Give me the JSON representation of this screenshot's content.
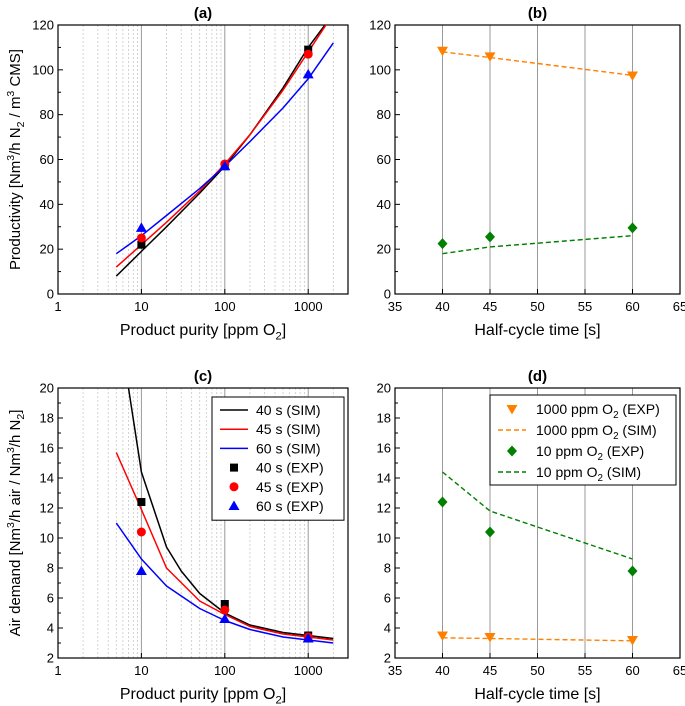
{
  "chart_data": [
    {
      "panel": "(a)",
      "type": "line",
      "xscale": "log",
      "xlabel": "Product purity [ppm O2]",
      "xlabel_parts": {
        "main": "Product purity [ppm O",
        "sub": "2",
        "tail": "]"
      },
      "ylabel": "Productivity [Nm3/h N2 / m3 CMS]",
      "ylabel_parts": {
        "a": "Productivity [Nm",
        "sup1": "3",
        "b": "/h N",
        "sub1": "2",
        "c": " / m",
        "sup2": "3",
        "d": " CMS]"
      },
      "xlim": [
        1,
        3000
      ],
      "ylim": [
        0,
        120
      ],
      "xticks": [
        1,
        10,
        100,
        1000
      ],
      "xtick_labels": [
        "1",
        "10",
        "100",
        "1000"
      ],
      "yticks": [
        0,
        20,
        40,
        60,
        80,
        100,
        120
      ],
      "ytick_labels": [
        "0",
        "20",
        "40",
        "60",
        "80",
        "100",
        "120"
      ],
      "series": [
        {
          "name": "40 s (SIM)",
          "kind": "line",
          "color": "#000000",
          "x": [
            5,
            10,
            20,
            50,
            100,
            200,
            500,
            1000,
            2000
          ],
          "y": [
            8,
            19,
            30,
            45,
            57,
            71,
            92,
            110,
            125
          ]
        },
        {
          "name": "45 s (SIM)",
          "kind": "line",
          "color": "#ff0000",
          "x": [
            5,
            10,
            20,
            50,
            100,
            200,
            500,
            1000,
            2000
          ],
          "y": [
            12,
            22,
            32,
            46,
            58,
            71,
            91,
            108,
            125
          ]
        },
        {
          "name": "60 s (SIM)",
          "kind": "line",
          "color": "#0000ff",
          "x": [
            5,
            10,
            20,
            50,
            100,
            200,
            500,
            1000,
            2000
          ],
          "y": [
            18,
            26,
            35,
            47,
            57,
            68,
            83,
            96,
            112
          ]
        },
        {
          "name": "40 s (EXP)",
          "kind": "marker",
          "marker": "square",
          "color": "#000000",
          "x": [
            10,
            100,
            1000
          ],
          "y": [
            22,
            57,
            109
          ]
        },
        {
          "name": "45 s (EXP)",
          "kind": "marker",
          "marker": "circle",
          "color": "#ff0000",
          "x": [
            10,
            100,
            1000
          ],
          "y": [
            25,
            58,
            107
          ]
        },
        {
          "name": "60 s (EXP)",
          "kind": "marker",
          "marker": "triangle-up",
          "color": "#0000ff",
          "x": [
            10,
            100,
            1000
          ],
          "y": [
            29.5,
            57,
            98
          ]
        }
      ]
    },
    {
      "panel": "(b)",
      "type": "line",
      "xscale": "linear",
      "xlabel": "Half-cycle time [s]",
      "xlim": [
        35,
        65
      ],
      "ylim": [
        0,
        120
      ],
      "xticks": [
        35,
        40,
        45,
        50,
        55,
        60,
        65
      ],
      "xtick_labels": [
        "35",
        "40",
        "45",
        "50",
        "55",
        "60",
        "65"
      ],
      "yticks": [
        0,
        20,
        40,
        60,
        80,
        100,
        120
      ],
      "ytick_labels": [
        "0",
        "20",
        "40",
        "60",
        "80",
        "100",
        "120"
      ],
      "series": [
        {
          "name": "1000 ppm O2 (EXP)",
          "kind": "marker",
          "marker": "triangle-down",
          "color": "#ff8000",
          "x": [
            40,
            45,
            60
          ],
          "y": [
            108.5,
            106,
            97.5
          ]
        },
        {
          "name": "1000 ppm O2 (SIM)",
          "kind": "dashed",
          "color": "#ff8000",
          "x": [
            40,
            45,
            60
          ],
          "y": [
            108,
            105.5,
            97.5
          ]
        },
        {
          "name": "10 ppm O2 (EXP)",
          "kind": "marker",
          "marker": "diamond",
          "color": "#007f00",
          "x": [
            40,
            45,
            60
          ],
          "y": [
            22.5,
            25.5,
            29.5
          ]
        },
        {
          "name": "10 ppm O2 (SIM)",
          "kind": "dashed",
          "color": "#007f00",
          "x": [
            40,
            45,
            60
          ],
          "y": [
            18,
            21,
            26
          ]
        }
      ]
    },
    {
      "panel": "(c)",
      "type": "line",
      "xscale": "log",
      "xlabel": "Product purity [ppm O2]",
      "xlabel_parts": {
        "main": "Product purity [ppm O",
        "sub": "2",
        "tail": "]"
      },
      "ylabel": "Air demand [Nm3/h air / Nm3/h N2]",
      "ylabel_parts": {
        "a": "Air demand [Nm",
        "sup1": "3",
        "b": "/h air / Nm",
        "sup2": "3",
        "c": "/h N",
        "sub1": "2",
        "d": "]"
      },
      "xlim": [
        1,
        3000
      ],
      "ylim": [
        2,
        20
      ],
      "xticks": [
        1,
        10,
        100,
        1000
      ],
      "xtick_labels": [
        "1",
        "10",
        "100",
        "1000"
      ],
      "yticks": [
        2,
        4,
        6,
        8,
        10,
        12,
        14,
        16,
        18,
        20
      ],
      "ytick_labels": [
        "2",
        "4",
        "6",
        "8",
        "10",
        "12",
        "14",
        "16",
        "18",
        "20"
      ],
      "series": [
        {
          "name": "40 s (SIM)",
          "kind": "line",
          "color": "#000000",
          "x": [
            7,
            10,
            20,
            30,
            50,
            100,
            200,
            500,
            1000,
            2000
          ],
          "y": [
            20,
            14.4,
            9.4,
            7.8,
            6.3,
            5.0,
            4.2,
            3.7,
            3.5,
            3.3
          ]
        },
        {
          "name": "45 s (SIM)",
          "kind": "line",
          "color": "#ff0000",
          "x": [
            5,
            10,
            20,
            50,
            100,
            200,
            500,
            1000,
            2000
          ],
          "y": [
            15.7,
            11.9,
            8.0,
            5.8,
            4.9,
            4.1,
            3.6,
            3.4,
            3.2
          ]
        },
        {
          "name": "60 s (SIM)",
          "kind": "line",
          "color": "#0000ff",
          "x": [
            5,
            10,
            20,
            50,
            100,
            200,
            500,
            1000,
            2000
          ],
          "y": [
            11.0,
            8.6,
            6.8,
            5.3,
            4.5,
            3.9,
            3.4,
            3.2,
            3.0
          ]
        },
        {
          "name": "40 s (EXP)",
          "kind": "marker",
          "marker": "square",
          "color": "#000000",
          "x": [
            10,
            100,
            1000
          ],
          "y": [
            12.4,
            5.6,
            3.5
          ]
        },
        {
          "name": "45 s (EXP)",
          "kind": "marker",
          "marker": "circle",
          "color": "#ff0000",
          "x": [
            10,
            100,
            1000
          ],
          "y": [
            10.4,
            5.2,
            3.4
          ]
        },
        {
          "name": "60 s (EXP)",
          "kind": "marker",
          "marker": "triangle-up",
          "color": "#0000ff",
          "x": [
            10,
            100,
            1000
          ],
          "y": [
            7.8,
            4.6,
            3.3
          ]
        }
      ],
      "legend": {
        "placement": "top-right",
        "entries": [
          {
            "label": "40 s (SIM)",
            "kind": "line",
            "color": "#000000"
          },
          {
            "label": "45 s (SIM)",
            "kind": "line",
            "color": "#ff0000"
          },
          {
            "label": "60 s (SIM)",
            "kind": "line",
            "color": "#0000ff"
          },
          {
            "label": "40 s (EXP)",
            "kind": "marker",
            "marker": "square",
            "color": "#000000"
          },
          {
            "label": "45 s (EXP)",
            "kind": "marker",
            "marker": "circle",
            "color": "#ff0000"
          },
          {
            "label": "60 s (EXP)",
            "kind": "marker",
            "marker": "triangle-up",
            "color": "#0000ff"
          }
        ]
      }
    },
    {
      "panel": "(d)",
      "type": "line",
      "xscale": "linear",
      "xlabel": "Half-cycle time [s]",
      "xlim": [
        35,
        65
      ],
      "ylim": [
        2,
        20
      ],
      "xticks": [
        35,
        40,
        45,
        50,
        55,
        60,
        65
      ],
      "xtick_labels": [
        "35",
        "40",
        "45",
        "50",
        "55",
        "60",
        "65"
      ],
      "yticks": [
        2,
        4,
        6,
        8,
        10,
        12,
        14,
        16,
        18,
        20
      ],
      "ytick_labels": [
        "2",
        "4",
        "6",
        "8",
        "10",
        "12",
        "14",
        "16",
        "18",
        "20"
      ],
      "series": [
        {
          "name": "1000 ppm O2 (EXP)",
          "kind": "marker",
          "marker": "triangle-down",
          "color": "#ff8000",
          "x": [
            40,
            45,
            60
          ],
          "y": [
            3.5,
            3.4,
            3.2
          ]
        },
        {
          "name": "1000 ppm O2 (SIM)",
          "kind": "dashed",
          "color": "#ff8000",
          "x": [
            40,
            45,
            60
          ],
          "y": [
            3.35,
            3.3,
            3.15
          ]
        },
        {
          "name": "10 ppm O2 (EXP)",
          "kind": "marker",
          "marker": "diamond",
          "color": "#007f00",
          "x": [
            40,
            45,
            60
          ],
          "y": [
            12.4,
            10.4,
            7.8
          ]
        },
        {
          "name": "10 ppm O2 (SIM)",
          "kind": "dashed",
          "color": "#007f00",
          "x": [
            40,
            45,
            60
          ],
          "y": [
            14.4,
            11.8,
            8.6
          ]
        }
      ],
      "legend": {
        "placement": "top-right",
        "entries": [
          {
            "label_main": "1000 ppm O",
            "label_sub": "2",
            "label_tail": " (EXP)",
            "kind": "marker",
            "marker": "triangle-down",
            "color": "#ff8000"
          },
          {
            "label_main": "1000 ppm O",
            "label_sub": "2",
            "label_tail": " (SIM)",
            "kind": "dashed",
            "color": "#ff8000"
          },
          {
            "label_main": "10 ppm O",
            "label_sub": "2",
            "label_tail": " (EXP)",
            "kind": "marker",
            "marker": "diamond",
            "color": "#007f00"
          },
          {
            "label_main": "10 ppm O",
            "label_sub": "2",
            "label_tail": " (SIM)",
            "kind": "dashed",
            "color": "#007f00"
          }
        ]
      }
    }
  ]
}
